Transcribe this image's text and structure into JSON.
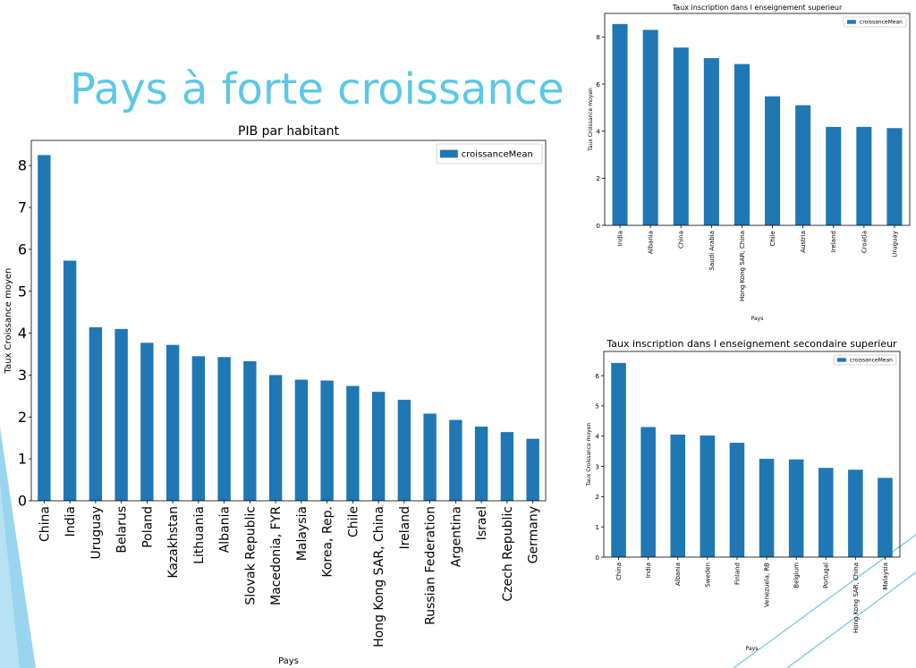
{
  "slide": {
    "title": "Pays à forte croissance"
  },
  "colors": {
    "bar": "#1f77b4",
    "title": "#5bc8e6",
    "decoration": "#87ceeb"
  },
  "chart_data": [
    {
      "type": "bar",
      "title": "PIB par habitant",
      "xlabel": "Pays",
      "ylabel": "Taux Croissance moyen",
      "legend": [
        "croissanceMean"
      ],
      "legend_position": "top-right",
      "ylim": [
        0,
        8.6
      ],
      "yticks": [
        0,
        1,
        2,
        3,
        4,
        5,
        6,
        7,
        8
      ],
      "categories": [
        "China",
        "India",
        "Uruguay",
        "Belarus",
        "Poland",
        "Kazakhstan",
        "Lithuania",
        "Albania",
        "Slovak Republic",
        "Macedonia, FYR",
        "Malaysia",
        "Korea, Rep.",
        "Chile",
        "Hong Kong SAR, China",
        "Ireland",
        "Russian Federation",
        "Argentina",
        "Israel",
        "Czech Republic",
        "Germany"
      ],
      "series": [
        {
          "name": "croissanceMean",
          "values": [
            8.25,
            5.73,
            4.14,
            4.1,
            3.77,
            3.72,
            3.45,
            3.43,
            3.33,
            3.0,
            2.89,
            2.87,
            2.74,
            2.6,
            2.41,
            2.08,
            1.93,
            1.77,
            1.64,
            1.48
          ]
        }
      ]
    },
    {
      "type": "bar",
      "title": "Taux inscription dans l enseignement superieur",
      "xlabel": "Pays",
      "ylabel": "Taux Croissance moyen",
      "legend": [
        "croissanceMean"
      ],
      "legend_position": "top-right",
      "ylim": [
        0,
        9.0
      ],
      "yticks": [
        0,
        2,
        4,
        6,
        8
      ],
      "categories": [
        "India",
        "Albania",
        "China",
        "Saudi Arabia",
        "Hong Kong SAR, China",
        "Chile",
        "Austria",
        "Ireland",
        "Croatia",
        "Uruguay"
      ],
      "series": [
        {
          "name": "croissanceMean",
          "values": [
            8.55,
            8.3,
            7.55,
            7.1,
            6.85,
            5.48,
            5.1,
            4.18,
            4.18,
            4.13
          ]
        }
      ]
    },
    {
      "type": "bar",
      "title": "Taux inscription dans l enseignement secondaire superieur",
      "xlabel": "Pays",
      "ylabel": "Taux Croissance moyen",
      "legend": [
        "croissanceMean"
      ],
      "legend_position": "top-right",
      "ylim": [
        0,
        6.8
      ],
      "yticks": [
        0,
        1,
        2,
        3,
        4,
        5,
        6
      ],
      "categories": [
        "China",
        "India",
        "Albania",
        "Sweden",
        "Finland",
        "Venezuela, RB",
        "Belgium",
        "Portugal",
        "Hong Kong SAR, China",
        "Malaysia"
      ],
      "series": [
        {
          "name": "croissanceMean",
          "values": [
            6.42,
            4.3,
            4.05,
            4.02,
            3.78,
            3.25,
            3.23,
            2.95,
            2.89,
            2.62
          ]
        }
      ]
    }
  ]
}
